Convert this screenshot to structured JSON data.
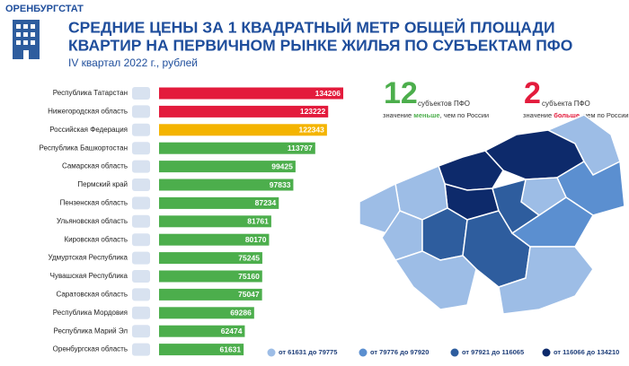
{
  "header": {
    "agency": "ОРЕНБУРГСТАТ",
    "title_line1": "СРЕДНИЕ ЦЕНЫ ЗА 1 КВАДРАТНЫЙ МЕТР ОБЩЕЙ ПЛОЩАДИ",
    "title_line2": "КВАРТИР НА ПЕРВИЧНОМ РЫНКЕ ЖИЛЬЯ ПО СУБЪЕКТАМ ПФО",
    "subtitle": "IV квартал 2022 г., рублей"
  },
  "chart_data": {
    "type": "hbar",
    "categories": [
      "Республика Татарстан",
      "Нижегородская область",
      "Российская Федерация",
      "Республика Башкортостан",
      "Самарская область",
      "Пермский край",
      "Пензенская область",
      "Ульяновская область",
      "Кировская область",
      "Удмуртская Республика",
      "Чувашская Республика",
      "Саратовская область",
      "Республика Мордовия",
      "Республика Марий Эл",
      "Оренбургская область"
    ],
    "values": [
      134206,
      123222,
      122343,
      113797,
      99425,
      97833,
      87234,
      81761,
      80170,
      75245,
      75160,
      75047,
      69286,
      62474,
      61631
    ],
    "colors": [
      "#e31b3c",
      "#e31b3c",
      "#f4b400",
      "#4cae4c",
      "#4cae4c",
      "#4cae4c",
      "#4cae4c",
      "#4cae4c",
      "#4cae4c",
      "#4cae4c",
      "#4cae4c",
      "#4cae4c",
      "#4cae4c",
      "#4cae4c",
      "#4cae4c"
    ]
  },
  "stats": [
    {
      "number": 12,
      "unit": "субъектов ПФО",
      "before": "значение ",
      "highlight": "меньше",
      "after": ", чем по России",
      "color": "#4cae4c"
    },
    {
      "number": 2,
      "unit": "субъекта ПФО",
      "before": "значение ",
      "highlight": "больше",
      "after": ", чем по России",
      "color": "#e31b3c"
    }
  ],
  "map_legend": [
    {
      "label": "от 61631 до 79775",
      "color": "#9dbde6"
    },
    {
      "label": "от 79776 до 97920",
      "color": "#5b8fd0"
    },
    {
      "label": "от 97921 до 116065",
      "color": "#2e5d9e"
    },
    {
      "label": "от 116066 до 134210",
      "color": "#0d2a6b"
    }
  ]
}
